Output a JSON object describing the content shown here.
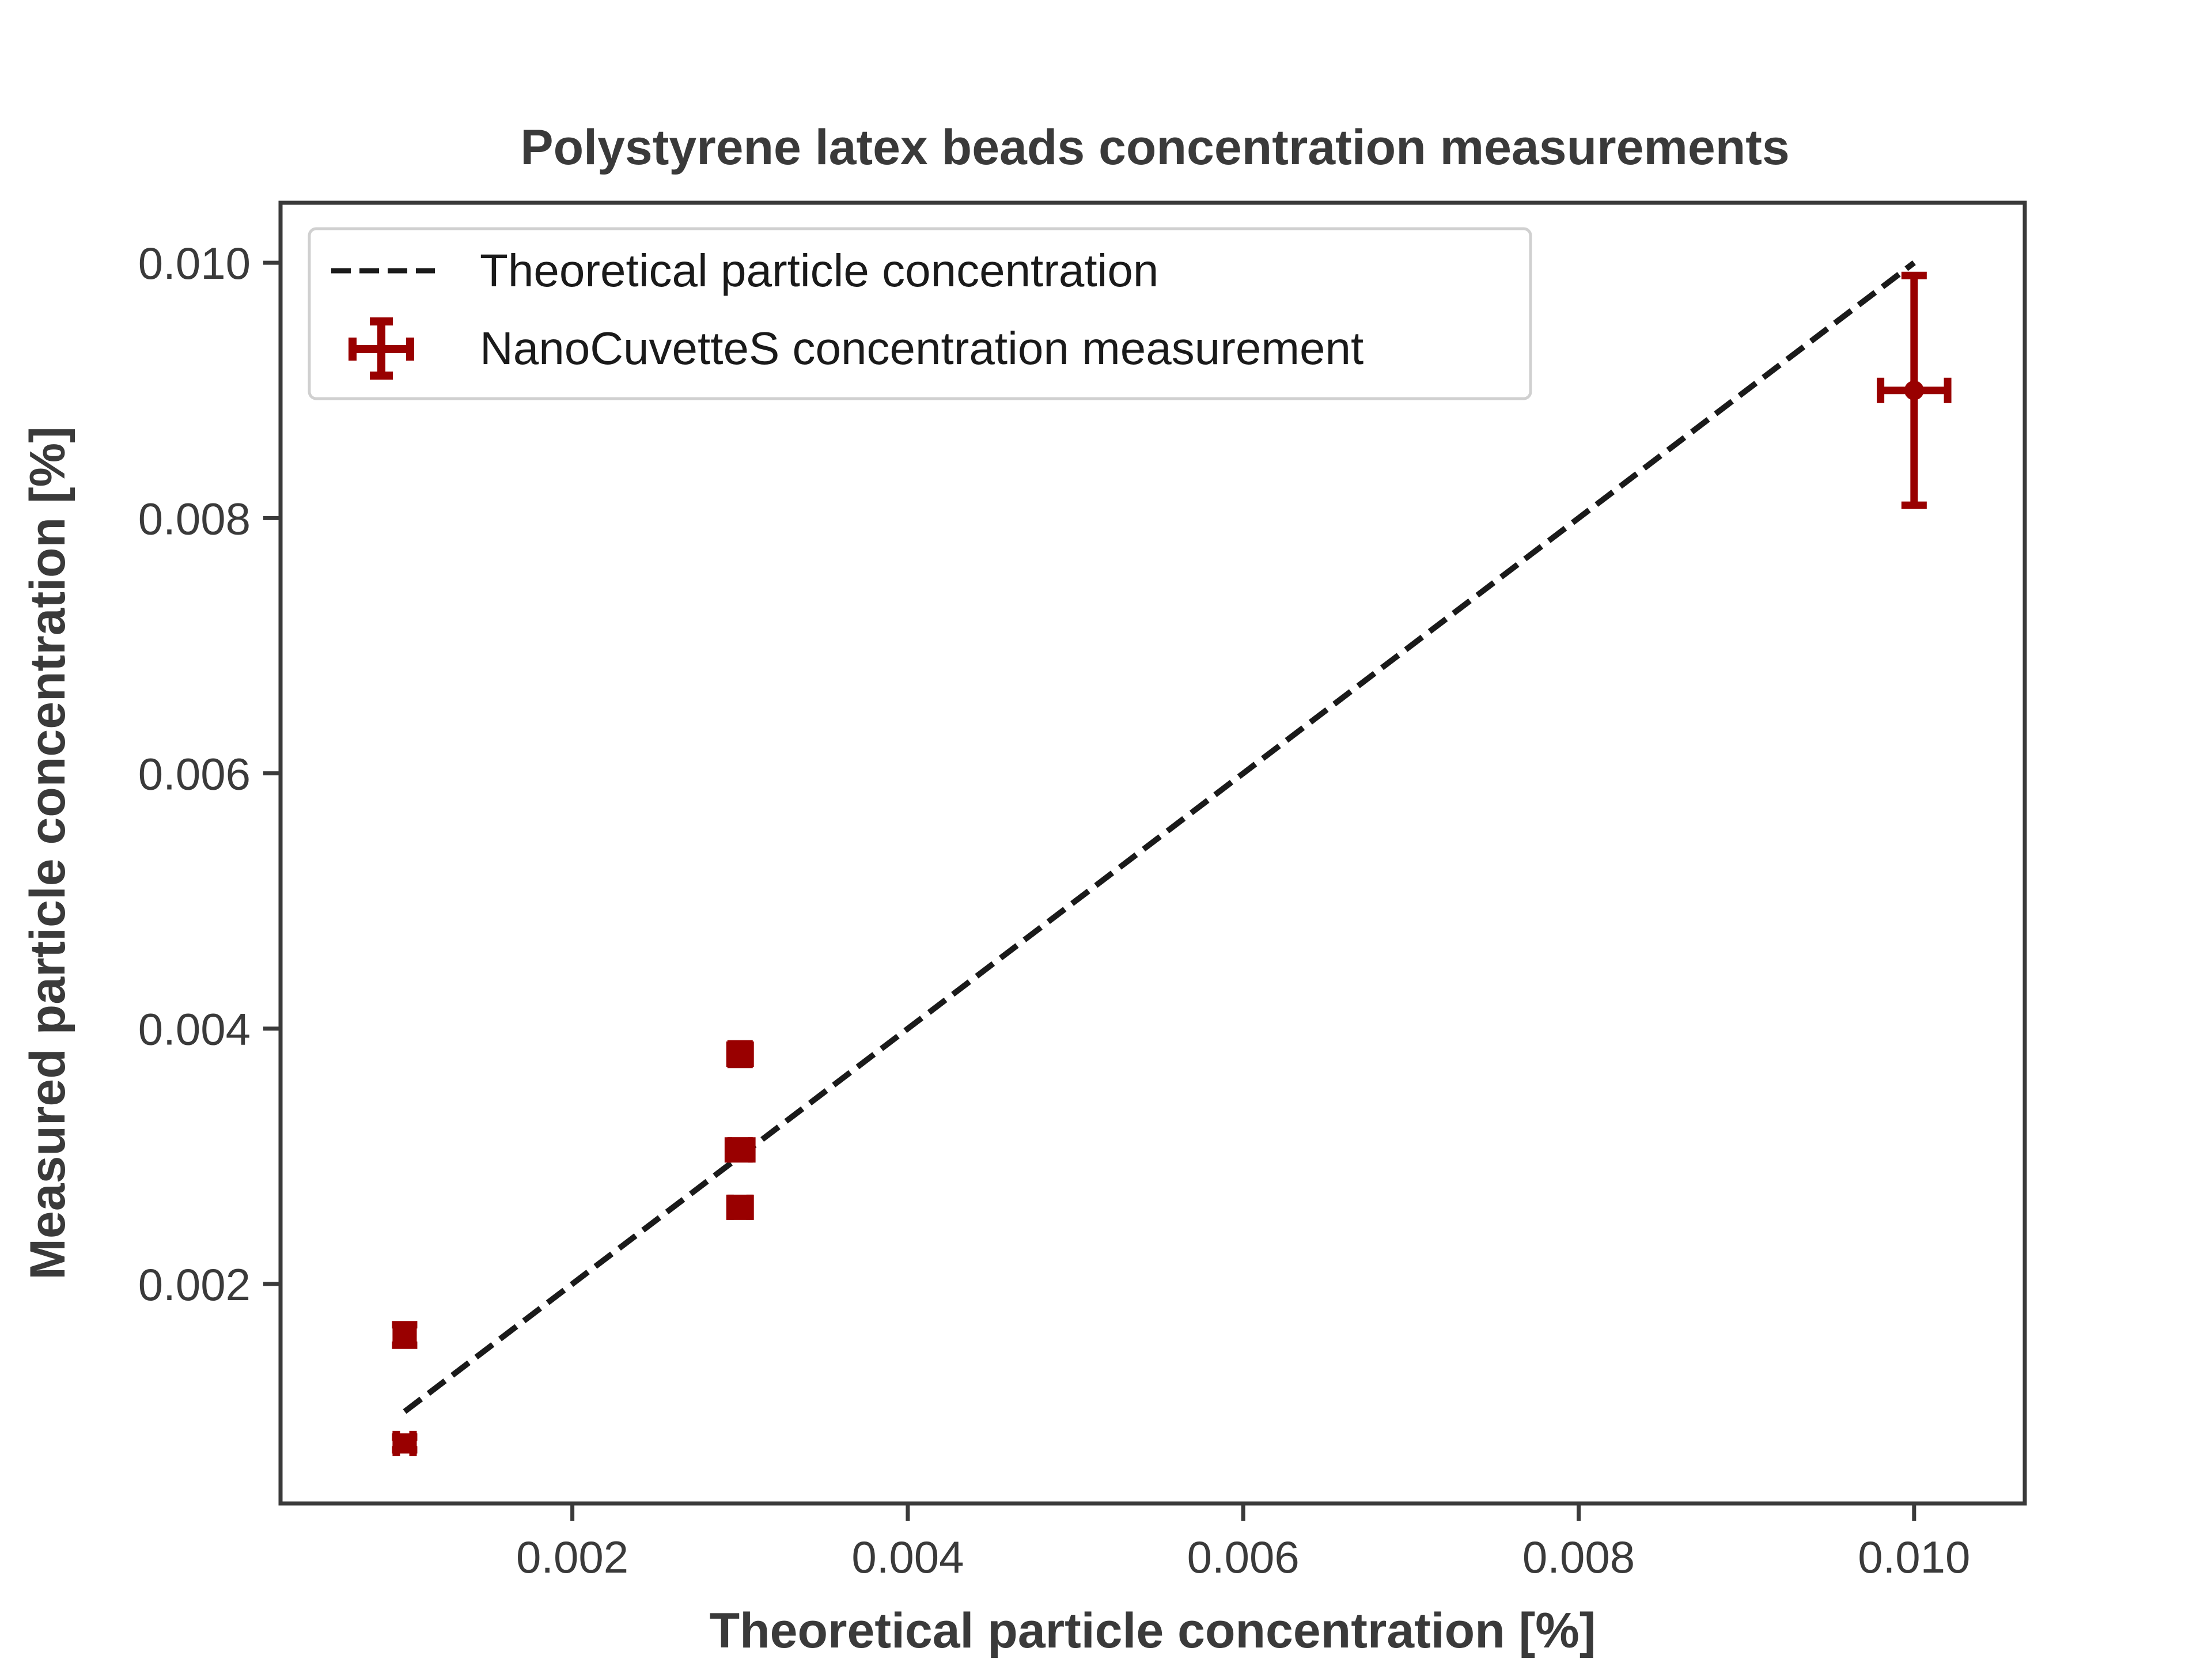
{
  "chart_data": {
    "type": "scatter",
    "title": "Polystyrene latex beads concentration measurements",
    "xlabel": "Theoretical particle concentration [%]",
    "ylabel": "Measured particle concentration [%]",
    "xlim": [
      0.00026,
      0.01066
    ],
    "ylim": [
      0.00028,
      0.01047
    ],
    "xticks": [
      0.002,
      0.004,
      0.006,
      0.008,
      0.01
    ],
    "xtick_labels": [
      "0.002",
      "0.004",
      "0.006",
      "0.008",
      "0.010"
    ],
    "yticks": [
      0.002,
      0.004,
      0.006,
      0.008,
      0.01
    ],
    "ytick_labels": [
      "0.002",
      "0.004",
      "0.006",
      "0.008",
      "0.010"
    ],
    "grid": false,
    "legend_position": "top-left",
    "series": [
      {
        "name": "Theoretical particle concentration",
        "kind": "line",
        "style": "dashed",
        "color": "#1a1a1a",
        "x": [
          0.001,
          0.01
        ],
        "y": [
          0.001,
          0.01
        ]
      },
      {
        "name": "NanoCuvetteS concentration measurement",
        "kind": "errorbar",
        "color": "#990000",
        "points": [
          {
            "x": 0.001,
            "y": 0.00075,
            "xerr": 5e-05,
            "yerr": 5e-05
          },
          {
            "x": 0.001,
            "y": 0.0016,
            "xerr": 5e-05,
            "yerr": 8e-05
          },
          {
            "x": 0.003,
            "y": 0.0026,
            "xerr": 6e-05,
            "yerr": 7e-05
          },
          {
            "x": 0.003,
            "y": 0.00305,
            "xerr": 7e-05,
            "yerr": 7e-05
          },
          {
            "x": 0.003,
            "y": 0.0038,
            "xerr": 6e-05,
            "yerr": 8e-05
          },
          {
            "x": 0.01,
            "y": 0.009,
            "xerr": 0.0002,
            "yerr": 0.0009
          }
        ]
      }
    ]
  }
}
